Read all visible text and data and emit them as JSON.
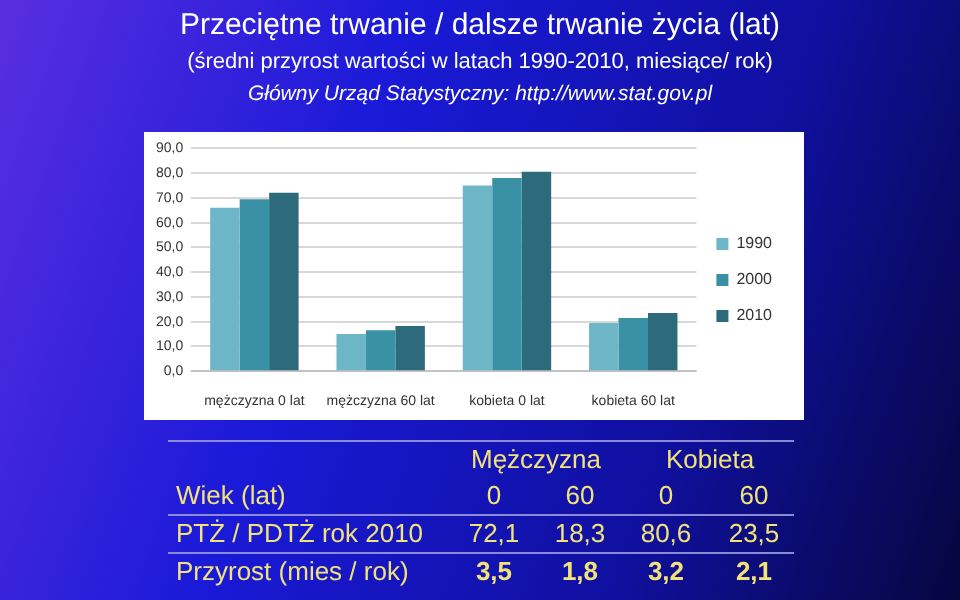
{
  "chart_data": {
    "type": "bar",
    "title": "Przeciętne trwanie / dalsze trwanie życia (lat)",
    "subtitle": "(średni przyrost wartości w latach 1990-2010, miesiące/ rok)",
    "annotations": [
      "Główny Urząd Statystyczny: http://www.stat.gov.pl",
      "Mężczyzna",
      "Kobieta",
      "Wiek (lat)",
      "0",
      "60",
      "0",
      "60",
      "PTŻ / PDTŻ rok 2010",
      "72,1",
      "18,3",
      "80,6",
      "23,5",
      "Przyrost (mies / rok)",
      "3,5",
      "1,8",
      "3,2",
      "2,1"
    ],
    "categories": [
      "mężczyzna 0 lat",
      "mężczyzna 60 lat",
      "kobieta 0 lat",
      "kobieta 60 lat"
    ],
    "series": [
      {
        "name": "1990",
        "color": "#6cb6c8",
        "values": [
          66,
          15,
          75,
          19.5
        ]
      },
      {
        "name": "2000",
        "color": "#3a91a6",
        "values": [
          69.5,
          16.5,
          78,
          21.5
        ]
      },
      {
        "name": "2010",
        "color": "#2d6b7c",
        "values": [
          72.1,
          18.3,
          80.6,
          23.5
        ]
      }
    ],
    "ylim": [
      0,
      90
    ],
    "yticks": [
      {
        "value": 0,
        "label": "0,0"
      },
      {
        "value": 10,
        "label": "10,0"
      },
      {
        "value": 20,
        "label": "20,0"
      },
      {
        "value": 30,
        "label": "30,0"
      },
      {
        "value": 40,
        "label": "40,0"
      },
      {
        "value": 50,
        "label": "50,0"
      },
      {
        "value": 60,
        "label": "60,0"
      },
      {
        "value": 70,
        "label": "70,0"
      },
      {
        "value": 80,
        "label": "80,0"
      },
      {
        "value": 90,
        "label": "90,0"
      }
    ],
    "grid": "y",
    "legend": "right"
  }
}
